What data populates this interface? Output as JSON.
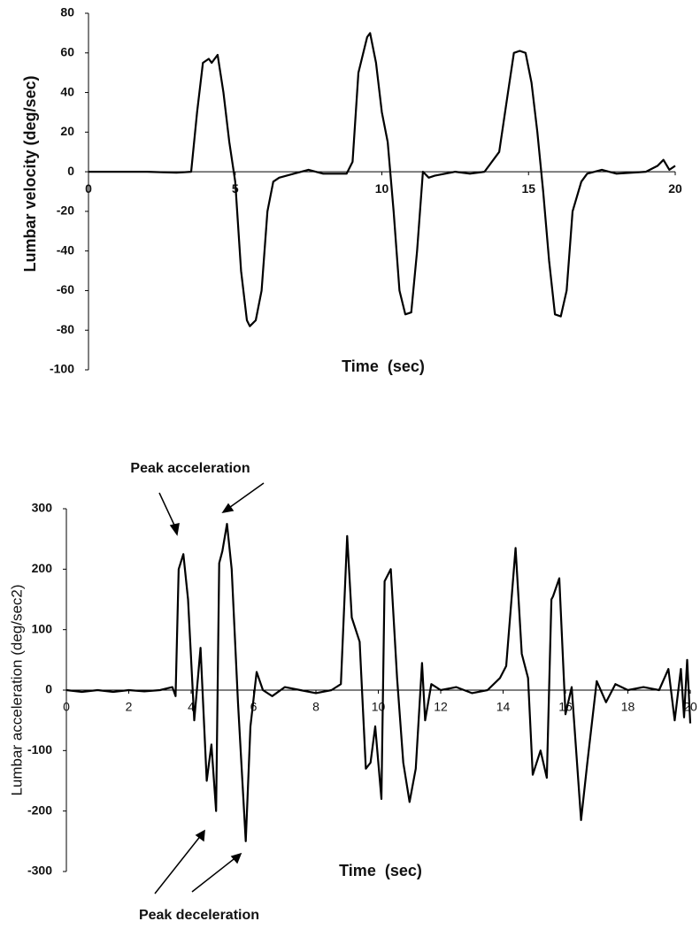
{
  "chart_data": [
    {
      "type": "line",
      "y_label": "Lumbar velocity (deg/sec)",
      "x_label": "Time  (sec)",
      "color": "#000000",
      "xlim": [
        0,
        20
      ],
      "xticks": [
        0,
        5,
        10,
        15,
        20
      ],
      "ylim": [
        -100,
        80
      ],
      "yticks": [
        -100,
        -80,
        -60,
        -40,
        -20,
        0,
        20,
        40,
        60,
        80
      ],
      "x": [
        0,
        1,
        2,
        3,
        3.5,
        3.7,
        3.9,
        4.1,
        4.2,
        4.4,
        4.6,
        4.8,
        5.0,
        5.2,
        5.4,
        5.5,
        5.7,
        5.9,
        6.1,
        6.3,
        6.5,
        7,
        7.5,
        8,
        8.5,
        8.8,
        9.0,
        9.2,
        9.4,
        9.5,
        9.6,
        9.8,
        10,
        10.2,
        10.4,
        10.6,
        10.8,
        11.0,
        11.2,
        11.4,
        11.6,
        11.8,
        12.5,
        13,
        13.5,
        14,
        14.3,
        14.5,
        14.7,
        14.9,
        15.1,
        15.3,
        15.5,
        15.7,
        15.9,
        16.1,
        16.3,
        16.5,
        16.8,
        17,
        17.5,
        18,
        19,
        19.4,
        19.6,
        19.8,
        20
      ],
      "values": [
        0,
        0,
        0,
        -0.5,
        0,
        30,
        55,
        57,
        55,
        59,
        40,
        15,
        -5,
        -50,
        -75,
        -78,
        -75,
        -60,
        -20,
        -5,
        -3,
        -1,
        1,
        -1,
        -1,
        -1,
        5,
        50,
        62,
        68,
        70,
        55,
        30,
        15,
        -20,
        -60,
        -72,
        -71,
        -40,
        0,
        -3,
        -2,
        0,
        -1,
        0,
        10,
        40,
        60,
        61,
        60,
        45,
        20,
        -10,
        -45,
        -72,
        -73,
        -60,
        -20,
        -5,
        -1,
        1,
        -1,
        0,
        3,
        6,
        1,
        3
      ]
    },
    {
      "type": "line",
      "y_label": "Lumbar acceleration (deg/sec2)",
      "x_label": "Time  (sec)",
      "color": "#000000",
      "annotations": [
        "Peak acceleration",
        "Peak deceleration"
      ],
      "xlim": [
        0,
        20
      ],
      "xticks": [
        0,
        2,
        4,
        6,
        8,
        10,
        12,
        14,
        16,
        18,
        20
      ],
      "ylim": [
        -300,
        300
      ],
      "yticks": [
        -300,
        -200,
        -100,
        0,
        100,
        200,
        300
      ],
      "x": [
        0,
        0.5,
        1,
        1.5,
        2,
        2.5,
        3,
        3.4,
        3.5,
        3.6,
        3.75,
        3.9,
        4.1,
        4.3,
        4.5,
        4.65,
        4.8,
        4.9,
        5.0,
        5.15,
        5.3,
        5.5,
        5.75,
        5.9,
        6.1,
        6.3,
        6.6,
        7,
        7.5,
        8,
        8.5,
        8.8,
        9.0,
        9.15,
        9.4,
        9.6,
        9.75,
        9.9,
        10.1,
        10.2,
        10.4,
        10.6,
        10.8,
        11.0,
        11.2,
        11.4,
        11.5,
        11.7,
        12,
        12.5,
        13,
        13.5,
        13.9,
        14.1,
        14.4,
        14.6,
        14.8,
        14.95,
        15.2,
        15.4,
        15.55,
        15.6,
        15.8,
        16.0,
        16.2,
        16.5,
        16.7,
        17.0,
        17.3,
        17.6,
        18,
        18.5,
        19,
        19.3,
        19.5,
        19.7,
        19.8,
        19.9,
        20
      ],
      "values": [
        0,
        -3,
        0,
        -3,
        0,
        -2,
        0,
        5,
        -10,
        200,
        225,
        150,
        -50,
        70,
        -150,
        -90,
        -200,
        210,
        230,
        275,
        200,
        -20,
        -250,
        -60,
        30,
        0,
        -10,
        5,
        0,
        -5,
        0,
        10,
        255,
        120,
        80,
        -130,
        -120,
        -60,
        -180,
        180,
        200,
        20,
        -120,
        -185,
        -130,
        45,
        -50,
        10,
        0,
        5,
        -5,
        0,
        20,
        40,
        235,
        60,
        20,
        -140,
        -100,
        -145,
        150,
        155,
        185,
        -40,
        5,
        -215,
        -120,
        15,
        -20,
        10,
        0,
        5,
        0,
        35,
        -50,
        35,
        -45,
        50,
        -55
      ]
    }
  ]
}
